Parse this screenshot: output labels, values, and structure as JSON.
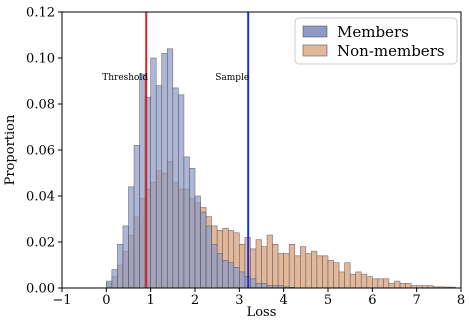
{
  "chart_data": {
    "type": "bar",
    "subtype": "overlaid-histogram",
    "xlabel": "Loss",
    "ylabel": "Proportion",
    "xlim": [
      -1,
      8
    ],
    "ylim": [
      0,
      0.12
    ],
    "xticks": [
      -1,
      0,
      1,
      2,
      3,
      4,
      5,
      6,
      7,
      8
    ],
    "xtick_labels": [
      "−1",
      "0",
      "1",
      "2",
      "3",
      "4",
      "5",
      "6",
      "7",
      "8"
    ],
    "yticks": [
      0.0,
      0.02,
      0.04,
      0.06,
      0.08,
      0.1,
      0.12
    ],
    "ytick_labels": [
      "0.00",
      "0.02",
      "0.04",
      "0.06",
      "0.08",
      "0.10",
      "0.12"
    ],
    "grid": false,
    "legend_position": "top-right",
    "bin_start": 0.0,
    "bin_width": 0.125,
    "series": [
      {
        "name": "Members",
        "color": "#8e9ac8",
        "values": [
          0.003,
          0.008,
          0.019,
          0.027,
          0.044,
          0.062,
          0.093,
          0.083,
          0.1,
          0.088,
          0.102,
          0.104,
          0.087,
          0.084,
          0.057,
          0.052,
          0.04,
          0.033,
          0.027,
          0.019,
          0.015,
          0.012,
          0.011,
          0.009,
          0.007,
          0.005,
          0.004,
          0.002,
          0.002,
          0.001,
          0.001,
          0.001,
          0.0005,
          0.0003,
          0,
          0,
          0,
          0,
          0,
          0,
          0,
          0,
          0,
          0,
          0,
          0,
          0,
          0,
          0,
          0,
          0,
          0,
          0,
          0,
          0,
          0,
          0,
          0,
          0,
          0,
          0,
          0,
          0,
          0
        ]
      },
      {
        "name": "Non-members",
        "color": "#e3b79a",
        "values": [
          0.002,
          0.005,
          0.01,
          0.016,
          0.023,
          0.031,
          0.039,
          0.043,
          0.046,
          0.051,
          0.05,
          0.055,
          0.046,
          0.043,
          0.043,
          0.039,
          0.037,
          0.035,
          0.031,
          0.027,
          0.025,
          0.026,
          0.025,
          0.024,
          0.019,
          0.022,
          0.017,
          0.021,
          0.018,
          0.023,
          0.019,
          0.015,
          0.015,
          0.019,
          0.014,
          0.018,
          0.015,
          0.016,
          0.014,
          0.014,
          0.012,
          0.011,
          0.007,
          0.011,
          0.006,
          0.007,
          0.006,
          0.005,
          0.004,
          0.004,
          0.004,
          0.002,
          0.003,
          0.002,
          0.002,
          0.001,
          0.001,
          0.001,
          0.001,
          0.0005,
          0.0005,
          0.0004,
          0.0004,
          0
        ]
      }
    ],
    "overlap_color": "#6c6385",
    "annotations": [
      {
        "text": "Threshold",
        "x": 0.9,
        "line_color": "#d62728"
      },
      {
        "text": "Sample",
        "x": 3.2,
        "line_color": "#1f2fd6"
      }
    ]
  }
}
